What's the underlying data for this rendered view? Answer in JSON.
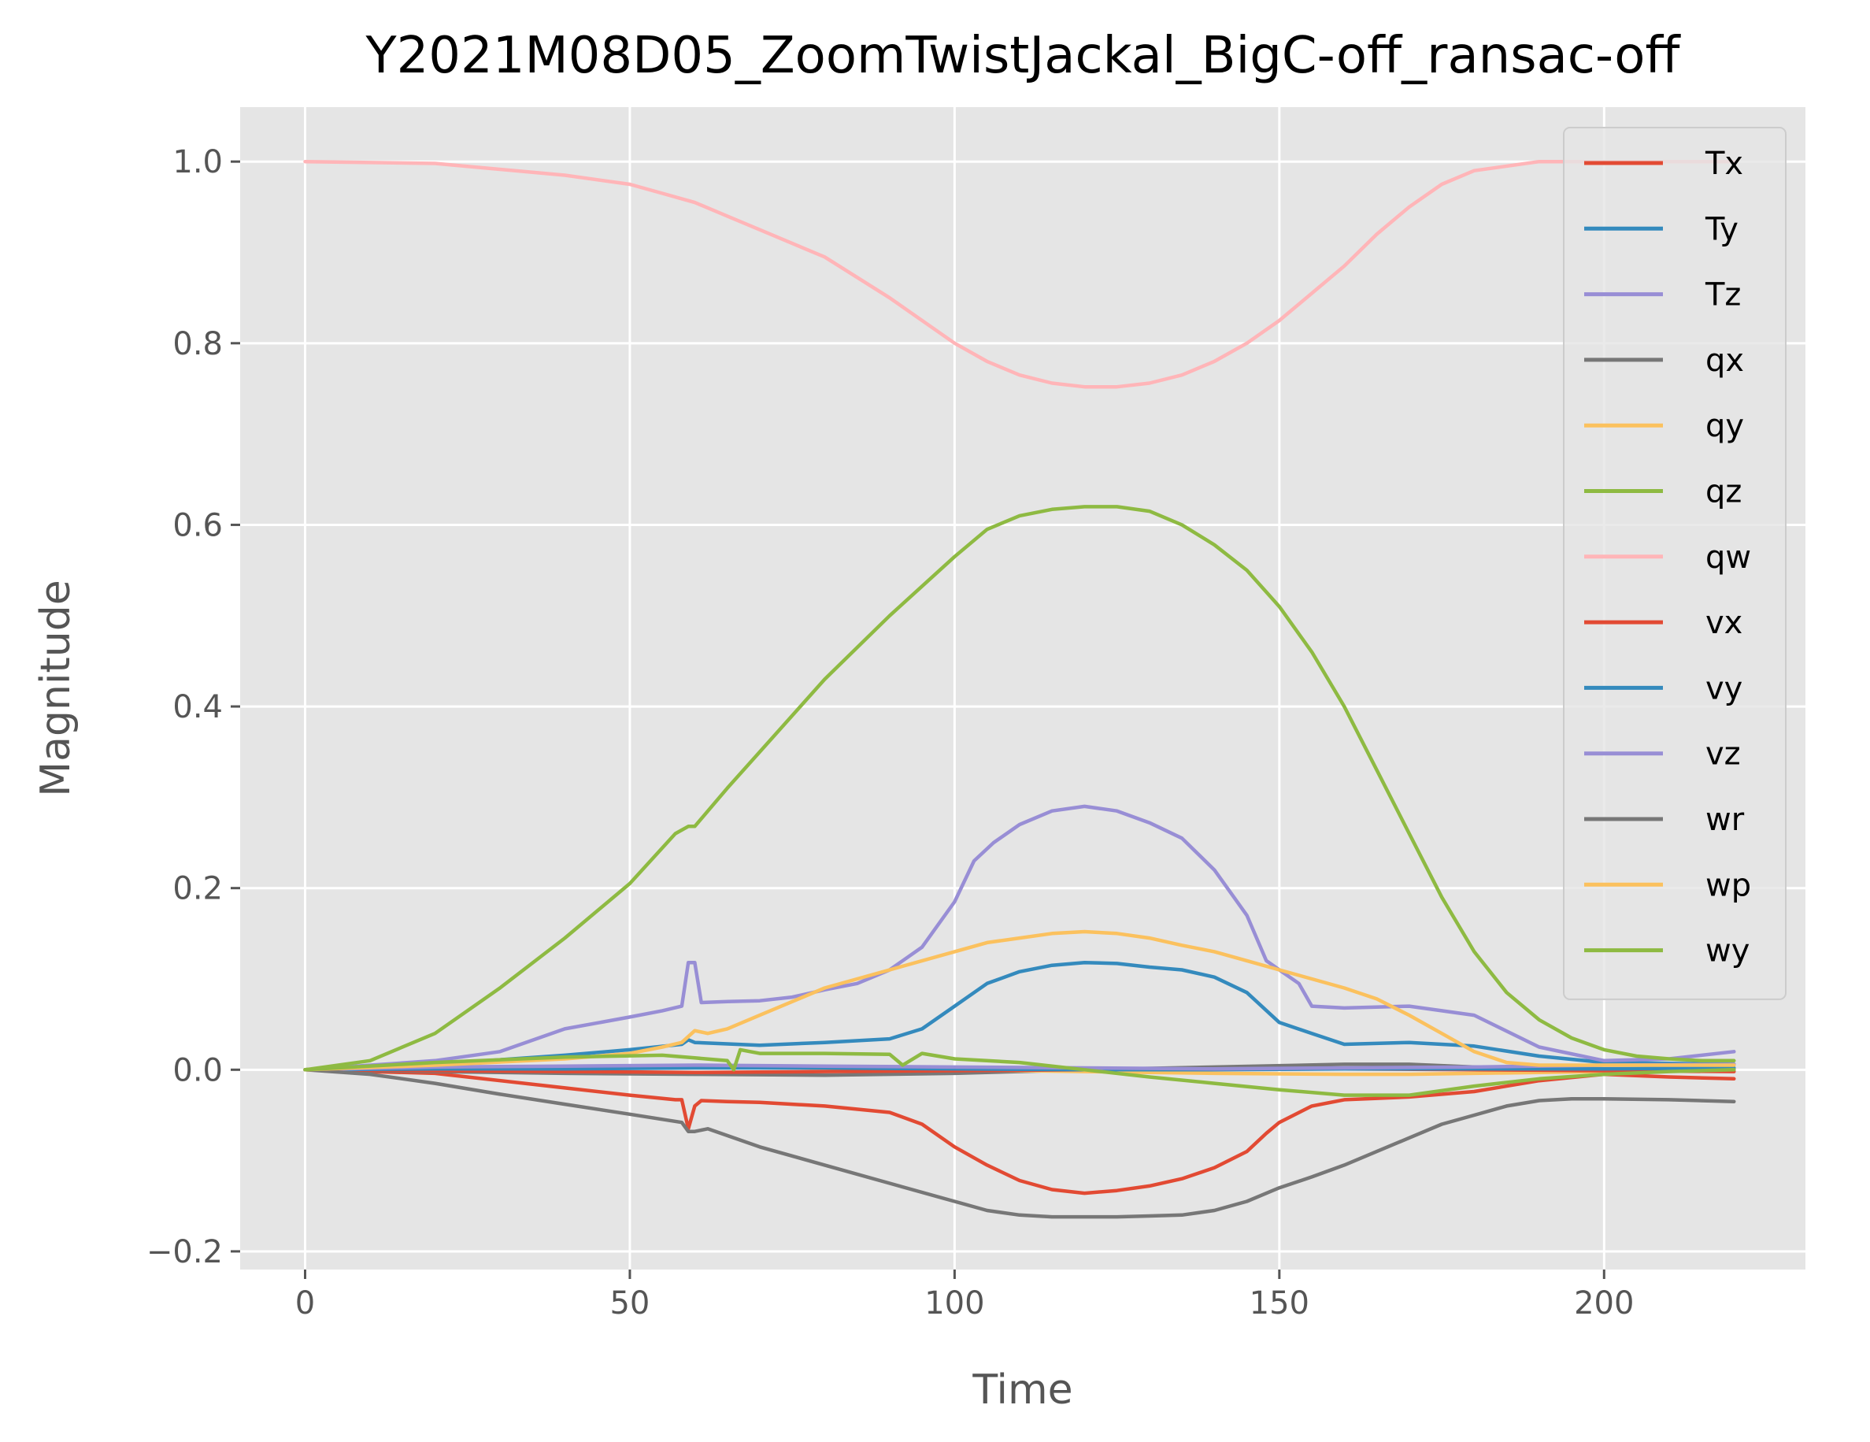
{
  "chart_data": {
    "type": "line",
    "title": "Y2021M08D05_ZoomTwistJackal_BigC-off_ransac-off",
    "xlabel": "Time",
    "ylabel": "Magnitude",
    "xlim": [
      -10,
      231
    ],
    "ylim": [
      -0.22,
      1.06
    ],
    "xticks": [
      0,
      50,
      100,
      150,
      200
    ],
    "xtick_labels": [
      "0",
      "50",
      "100",
      "150",
      "200"
    ],
    "yticks": [
      -0.2,
      0.0,
      0.2,
      0.4,
      0.6,
      0.8,
      1.0
    ],
    "ytick_labels": [
      "−0.2",
      "0.0",
      "0.2",
      "0.4",
      "0.6",
      "0.8",
      "1.0"
    ],
    "grid": true,
    "legend_position": "top-right",
    "style": {
      "background": "#E5E5E5",
      "grid_color": "#FFFFFF"
    },
    "series": [
      {
        "name": "Tx",
        "color": "#E24A33",
        "x": [
          0,
          20,
          40,
          50,
          57,
          58,
          59,
          60,
          61,
          65,
          70,
          80,
          90,
          95,
          100,
          105,
          110,
          115,
          120,
          125,
          130,
          135,
          140,
          145,
          148,
          150,
          155,
          160,
          170,
          180,
          190,
          200,
          210,
          220
        ],
        "y": [
          0,
          -0.004,
          -0.02,
          -0.028,
          -0.033,
          -0.033,
          -0.065,
          -0.04,
          -0.034,
          -0.035,
          -0.036,
          -0.04,
          -0.047,
          -0.06,
          -0.085,
          -0.105,
          -0.122,
          -0.132,
          -0.136,
          -0.133,
          -0.128,
          -0.12,
          -0.108,
          -0.09,
          -0.07,
          -0.058,
          -0.04,
          -0.033,
          -0.03,
          -0.024,
          -0.012,
          -0.005,
          -0.008,
          -0.01
        ]
      },
      {
        "name": "Ty",
        "color": "#348ABD",
        "x": [
          0,
          20,
          40,
          50,
          58,
          59,
          60,
          70,
          80,
          90,
          95,
          100,
          105,
          110,
          115,
          120,
          125,
          130,
          135,
          140,
          145,
          150,
          155,
          160,
          170,
          180,
          190,
          200,
          210,
          220
        ],
        "y": [
          0,
          0.006,
          0.016,
          0.022,
          0.028,
          0.033,
          0.03,
          0.027,
          0.03,
          0.034,
          0.045,
          0.07,
          0.095,
          0.108,
          0.115,
          0.118,
          0.117,
          0.113,
          0.11,
          0.102,
          0.085,
          0.052,
          0.04,
          0.028,
          0.03,
          0.026,
          0.015,
          0.008,
          0.007,
          0.006
        ]
      },
      {
        "name": "Tz",
        "color": "#988ED5",
        "x": [
          0,
          20,
          30,
          40,
          50,
          55,
          58,
          59,
          60,
          61,
          65,
          70,
          75,
          80,
          85,
          90,
          95,
          100,
          103,
          106,
          110,
          115,
          120,
          125,
          130,
          135,
          140,
          143,
          145,
          148,
          150,
          153,
          155,
          160,
          170,
          180,
          190,
          200,
          210,
          220
        ],
        "y": [
          0,
          0.01,
          0.02,
          0.045,
          0.058,
          0.065,
          0.07,
          0.118,
          0.118,
          0.074,
          0.075,
          0.076,
          0.08,
          0.088,
          0.095,
          0.11,
          0.135,
          0.185,
          0.23,
          0.25,
          0.27,
          0.285,
          0.29,
          0.285,
          0.272,
          0.255,
          0.22,
          0.19,
          0.17,
          0.12,
          0.11,
          0.095,
          0.07,
          0.068,
          0.07,
          0.06,
          0.025,
          0.01,
          0.012,
          0.02
        ]
      },
      {
        "name": "qx",
        "color": "#777777",
        "x": [
          0,
          20,
          40,
          60,
          80,
          100,
          120,
          140,
          160,
          170,
          180,
          200,
          210,
          220
        ],
        "y": [
          0,
          -0.002,
          -0.004,
          -0.005,
          -0.006,
          -0.004,
          0,
          0.003,
          0.006,
          0.006,
          0.003,
          0,
          0,
          0
        ]
      },
      {
        "name": "qy",
        "color": "#FBC15E",
        "x": [
          0,
          20,
          40,
          60,
          80,
          100,
          120,
          140,
          160,
          170,
          180,
          200,
          210,
          220
        ],
        "y": [
          0,
          0.002,
          0.003,
          0.003,
          0.002,
          0,
          -0.002,
          -0.004,
          -0.005,
          -0.005,
          -0.004,
          -0.002,
          -0.001,
          0
        ]
      },
      {
        "name": "qz",
        "color": "#8EBA42",
        "x": [
          0,
          10,
          20,
          30,
          40,
          50,
          57,
          59,
          60,
          65,
          70,
          80,
          90,
          100,
          105,
          110,
          115,
          120,
          125,
          130,
          135,
          140,
          145,
          150,
          155,
          160,
          165,
          170,
          175,
          180,
          185,
          190,
          195,
          200,
          205,
          210,
          215,
          220
        ],
        "y": [
          0,
          0.01,
          0.04,
          0.09,
          0.145,
          0.205,
          0.26,
          0.268,
          0.268,
          0.31,
          0.35,
          0.43,
          0.5,
          0.565,
          0.595,
          0.61,
          0.617,
          0.62,
          0.62,
          0.615,
          0.6,
          0.578,
          0.55,
          0.51,
          0.46,
          0.4,
          0.33,
          0.26,
          0.19,
          0.13,
          0.085,
          0.055,
          0.035,
          0.022,
          0.015,
          0.012,
          0.01,
          0.01
        ]
      },
      {
        "name": "qw",
        "color": "#FFB5B8",
        "x": [
          0,
          20,
          40,
          50,
          55,
          60,
          65,
          70,
          80,
          90,
          100,
          105,
          110,
          115,
          120,
          125,
          130,
          135,
          140,
          145,
          150,
          155,
          160,
          165,
          170,
          175,
          180,
          190,
          200,
          210,
          220
        ],
        "y": [
          1.0,
          0.998,
          0.985,
          0.975,
          0.965,
          0.955,
          0.94,
          0.925,
          0.895,
          0.85,
          0.8,
          0.78,
          0.765,
          0.756,
          0.752,
          0.752,
          0.756,
          0.765,
          0.78,
          0.8,
          0.825,
          0.855,
          0.885,
          0.92,
          0.95,
          0.975,
          0.99,
          1.0,
          1.0,
          1.0,
          1.0
        ]
      },
      {
        "name": "vx",
        "color": "#E24A33",
        "x": [
          0,
          20,
          40,
          60,
          80,
          100,
          120,
          140,
          160,
          180,
          200,
          220
        ],
        "y": [
          0,
          -0.001,
          -0.002,
          -0.003,
          -0.002,
          -0.001,
          0,
          0.001,
          0.001,
          0,
          -0.001,
          -0.002
        ]
      },
      {
        "name": "vy",
        "color": "#348ABD",
        "x": [
          0,
          20,
          40,
          60,
          80,
          100,
          120,
          140,
          160,
          180,
          200,
          220
        ],
        "y": [
          0,
          0.001,
          0.001,
          0.002,
          0.002,
          0.001,
          0,
          0,
          0.001,
          0.001,
          0.001,
          0.002
        ]
      },
      {
        "name": "vz",
        "color": "#988ED5",
        "x": [
          0,
          20,
          40,
          60,
          80,
          100,
          120,
          140,
          160,
          180,
          200,
          220
        ],
        "y": [
          0,
          0.003,
          0.004,
          0.005,
          0.004,
          0.003,
          0.002,
          0.001,
          0.002,
          0.003,
          0.005,
          0.006
        ]
      },
      {
        "name": "wr",
        "color": "#777777",
        "x": [
          0,
          10,
          20,
          30,
          40,
          50,
          58,
          59,
          60,
          62,
          70,
          80,
          90,
          100,
          105,
          110,
          115,
          120,
          125,
          130,
          135,
          140,
          145,
          150,
          155,
          160,
          165,
          170,
          175,
          180,
          185,
          190,
          195,
          200,
          210,
          220
        ],
        "y": [
          0,
          -0.005,
          -0.015,
          -0.027,
          -0.038,
          -0.049,
          -0.058,
          -0.068,
          -0.068,
          -0.065,
          -0.085,
          -0.105,
          -0.125,
          -0.145,
          -0.155,
          -0.16,
          -0.162,
          -0.162,
          -0.162,
          -0.161,
          -0.16,
          -0.155,
          -0.145,
          -0.13,
          -0.118,
          -0.105,
          -0.09,
          -0.075,
          -0.06,
          -0.05,
          -0.04,
          -0.034,
          -0.032,
          -0.032,
          -0.033,
          -0.035
        ]
      },
      {
        "name": "wp",
        "color": "#FBC15E",
        "x": [
          0,
          20,
          40,
          50,
          55,
          58,
          60,
          62,
          65,
          70,
          80,
          90,
          100,
          105,
          110,
          115,
          120,
          125,
          130,
          135,
          140,
          145,
          150,
          155,
          160,
          165,
          170,
          175,
          180,
          185,
          190,
          200,
          210,
          220
        ],
        "y": [
          0,
          0.005,
          0.012,
          0.018,
          0.025,
          0.03,
          0.043,
          0.04,
          0.045,
          0.06,
          0.09,
          0.11,
          0.13,
          0.14,
          0.145,
          0.15,
          0.152,
          0.15,
          0.145,
          0.137,
          0.13,
          0.12,
          0.11,
          0.1,
          0.09,
          0.078,
          0.06,
          0.04,
          0.02,
          0.008,
          0.005,
          0.005,
          0.005,
          0.005
        ]
      },
      {
        "name": "wy",
        "color": "#8EBA42",
        "x": [
          0,
          20,
          40,
          55,
          60,
          65,
          66,
          67,
          70,
          80,
          90,
          92,
          95,
          100,
          110,
          120,
          130,
          140,
          150,
          160,
          170,
          180,
          190,
          200,
          210,
          220
        ],
        "y": [
          0,
          0.008,
          0.014,
          0.016,
          0.013,
          0.01,
          0,
          0.022,
          0.018,
          0.018,
          0.017,
          0.005,
          0.018,
          0.012,
          0.008,
          0,
          -0.008,
          -0.015,
          -0.022,
          -0.028,
          -0.028,
          -0.018,
          -0.01,
          -0.005,
          -0.002,
          0
        ]
      }
    ]
  }
}
